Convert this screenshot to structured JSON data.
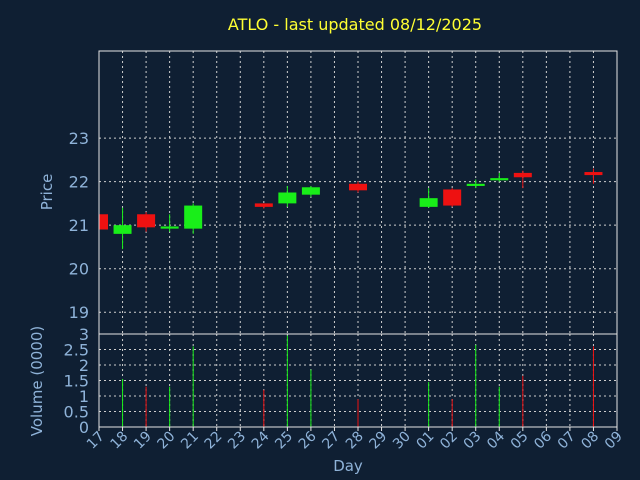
{
  "colors": {
    "background": "#0f1f33",
    "axis": "#e6e6e6",
    "grid": "#cfcfcf",
    "title": "#ffff33",
    "label": "#8fb3d9",
    "up": "#19ee19",
    "down": "#ee1111"
  },
  "chart_data": {
    "type": "candlestick",
    "title": "ATLO - last updated 08/12/2025",
    "xlabel": "Day",
    "price_ylabel": "Price",
    "volume_ylabel": "Volume (0000)",
    "x_ticks": [
      "17",
      "18",
      "19",
      "20",
      "21",
      "22",
      "23",
      "24",
      "25",
      "26",
      "27",
      "28",
      "29",
      "30",
      "01",
      "02",
      "03",
      "04",
      "05",
      "06",
      "07",
      "08",
      "09"
    ],
    "price_ylim": [
      18.5,
      25.0
    ],
    "price_ticks": [
      "19",
      "20",
      "21",
      "22",
      "23"
    ],
    "volume_ylim": [
      0,
      3
    ],
    "volume_ticks": [
      "0",
      "0.5",
      "1",
      "1.5",
      "2",
      "2.5",
      "3"
    ],
    "grid": true,
    "candles": [
      {
        "day": "17",
        "open": 21.25,
        "high": 21.3,
        "low": 20.85,
        "close": 20.9,
        "volume": 0.6
      },
      {
        "day": "18",
        "open": 20.8,
        "high": 21.4,
        "low": 20.45,
        "close": 21.0,
        "volume": 1.55
      },
      {
        "day": "19",
        "open": 21.25,
        "high": 21.3,
        "low": 20.85,
        "close": 20.95,
        "volume": 1.3
      },
      {
        "day": "20",
        "open": 20.92,
        "high": 21.25,
        "low": 20.85,
        "close": 20.97,
        "volume": 1.3
      },
      {
        "day": "21",
        "open": 20.92,
        "high": 21.5,
        "low": 20.8,
        "close": 21.45,
        "volume": 2.6
      },
      {
        "day": "24",
        "open": 21.5,
        "high": 21.5,
        "low": 21.38,
        "close": 21.42,
        "volume": 1.2
      },
      {
        "day": "25",
        "open": 21.5,
        "high": 21.9,
        "low": 21.42,
        "close": 21.75,
        "volume": 2.95
      },
      {
        "day": "26",
        "open": 21.7,
        "high": 21.9,
        "low": 21.65,
        "close": 21.87,
        "volume": 1.85
      },
      {
        "day": "28",
        "open": 21.95,
        "high": 22.0,
        "low": 21.75,
        "close": 21.8,
        "volume": 0.9
      },
      {
        "day": "01",
        "open": 21.42,
        "high": 21.85,
        "low": 21.4,
        "close": 21.62,
        "volume": 1.45
      },
      {
        "day": "02",
        "open": 21.82,
        "high": 21.85,
        "low": 21.42,
        "close": 21.45,
        "volume": 0.9
      },
      {
        "day": "03",
        "open": 21.9,
        "high": 22.05,
        "low": 21.85,
        "close": 21.95,
        "volume": 2.65
      },
      {
        "day": "04",
        "open": 22.03,
        "high": 22.2,
        "low": 22.0,
        "close": 22.08,
        "volume": 1.3
      },
      {
        "day": "05",
        "open": 22.2,
        "high": 22.25,
        "low": 21.85,
        "close": 22.1,
        "volume": 1.65
      },
      {
        "day": "08",
        "open": 22.22,
        "high": 22.3,
        "low": 21.95,
        "close": 22.15,
        "volume": 2.6
      }
    ]
  }
}
